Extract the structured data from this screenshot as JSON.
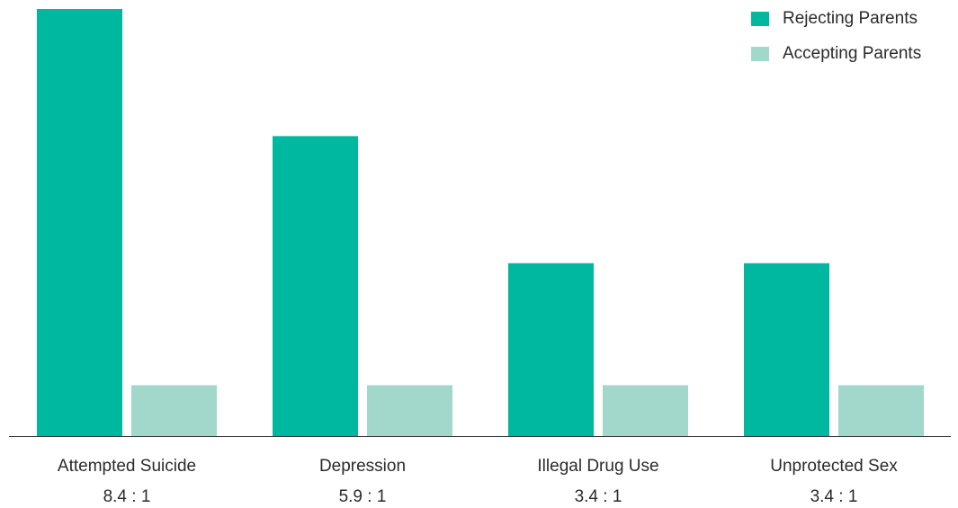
{
  "chart_data": {
    "type": "bar",
    "categories": [
      "Attempted Suicide",
      "Depression",
      "Illegal Drug Use",
      "Unprotected Sex"
    ],
    "ratio_labels": [
      "8.4 : 1",
      "5.9 : 1",
      "3.4 : 1",
      "3.4 : 1"
    ],
    "series": [
      {
        "name": "Rejecting Parents",
        "color": "#00b89f",
        "values": [
          8.4,
          5.9,
          3.4,
          3.4
        ]
      },
      {
        "name": "Accepting Parents",
        "color": "#a1d8cb",
        "values": [
          1,
          1,
          1,
          1
        ]
      }
    ],
    "ylim": [
      0,
      8.4
    ],
    "grid": false,
    "legend_position": "top-right",
    "title": "",
    "xlabel": "",
    "ylabel": ""
  }
}
